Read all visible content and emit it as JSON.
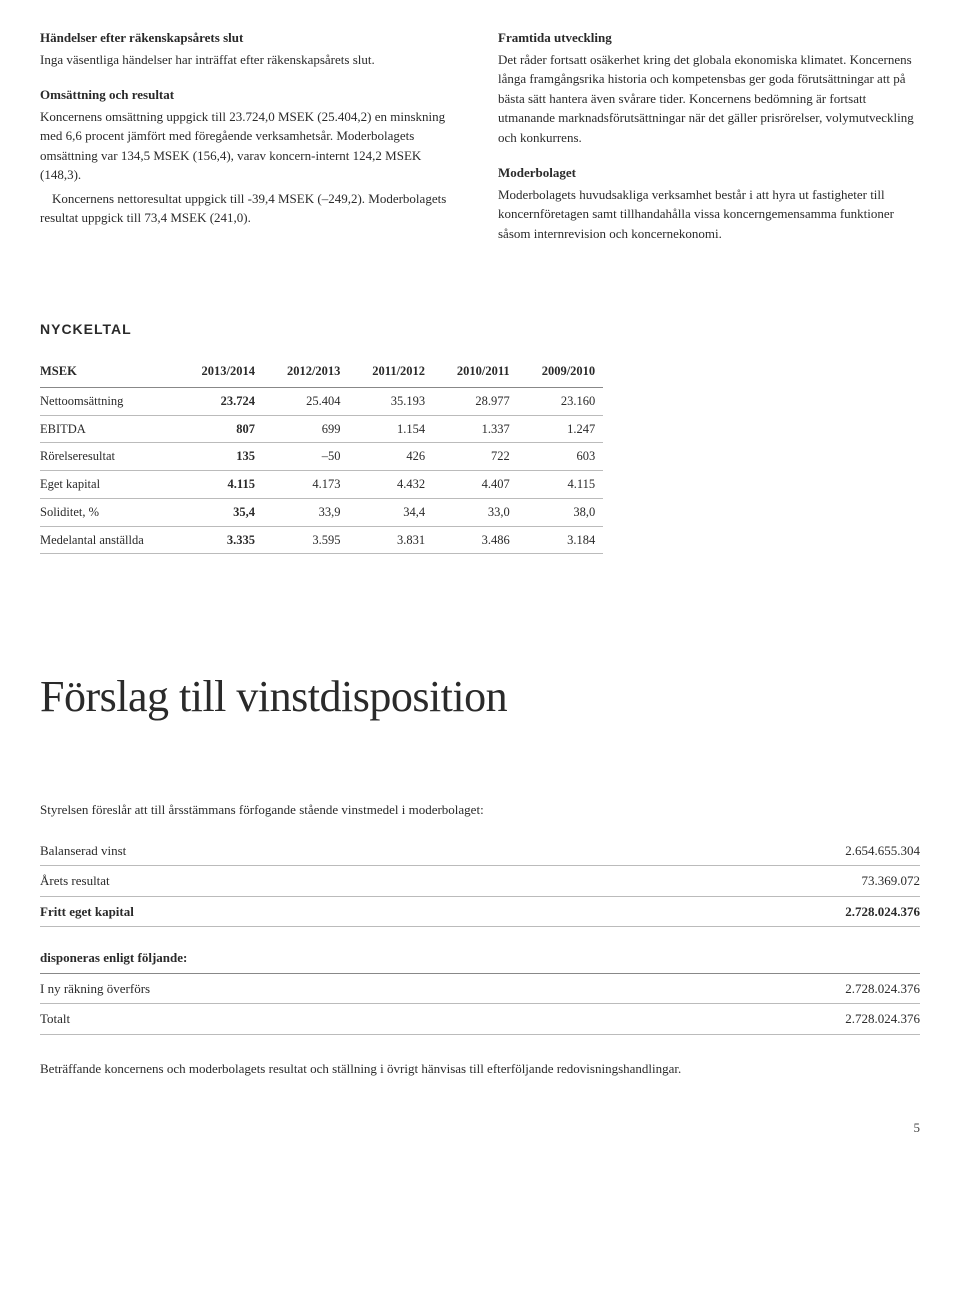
{
  "leftCol": {
    "sect1": {
      "heading": "Händelser efter räkenskapsårets slut",
      "body": "Inga väsentliga händelser har inträffat efter räkenskapsårets slut."
    },
    "sect2": {
      "heading": "Omsättning och resultat",
      "p1": "Koncernens omsättning uppgick till 23.724,0 MSEK (25.404,2) en minskning med 6,6 procent jämfört med föregående verksamhetsår. Moderbolagets omsättning var 134,5 MSEK (156,4), varav koncern-internt 124,2 MSEK (148,3).",
      "p2": "Koncernens nettoresultat uppgick till -39,4 MSEK (–249,2). Moderbolagets resultat uppgick till 73,4 MSEK (241,0)."
    }
  },
  "rightCol": {
    "sect1": {
      "heading": "Framtida utveckling",
      "body": "Det råder fortsatt osäkerhet kring det globala ekonomiska klimatet. Koncernens långa framgångsrika historia och kompetensbas ger goda förutsättningar att på bästa sätt hantera även svårare tider. Koncernens bedömning är fortsatt utmanande marknadsförutsättningar när det gäller prisrörelser, volymutveckling och konkurrens."
    },
    "sect2": {
      "heading": "Moderbolaget",
      "body": "Moderbolagets huvudsakliga verksamhet består i att hyra ut fastigheter till koncernföretagen samt tillhandahålla vissa koncerngemensamma funktioner såsom internrevision och koncernekonomi."
    }
  },
  "nyckeltal": {
    "title": "NYCKELTAL",
    "headerLabel": "MSEK",
    "years": [
      "2013/2014",
      "2012/2013",
      "2011/2012",
      "2010/2011",
      "2009/2010"
    ],
    "rows": [
      {
        "label": "Nettoomsättning",
        "vals": [
          "23.724",
          "25.404",
          "35.193",
          "28.977",
          "23.160"
        ]
      },
      {
        "label": "EBITDA",
        "vals": [
          "807",
          "699",
          "1.154",
          "1.337",
          "1.247"
        ]
      },
      {
        "label": "Rörelseresultat",
        "vals": [
          "135",
          "–50",
          "426",
          "722",
          "603"
        ]
      },
      {
        "label": "Eget kapital",
        "vals": [
          "4.115",
          "4.173",
          "4.432",
          "4.407",
          "4.115"
        ]
      },
      {
        "label": "Soliditet, %",
        "vals": [
          "35,4",
          "33,9",
          "34,4",
          "33,0",
          "38,0"
        ]
      },
      {
        "label": "Medelantal anställda",
        "vals": [
          "3.335",
          "3.595",
          "3.831",
          "3.486",
          "3.184"
        ]
      }
    ]
  },
  "forslag": {
    "title": "Förslag till vinstdisposition",
    "intro": "Styrelsen föreslår att till årsstämmans förfogande stående vinstmedel i moderbolaget:",
    "table1": [
      {
        "label": "Balanserad vinst",
        "value": "2.654.655.304",
        "bold": false
      },
      {
        "label": "Årets resultat",
        "value": "73.369.072",
        "bold": false
      },
      {
        "label": "Fritt eget kapital",
        "value": "2.728.024.376",
        "bold": true
      }
    ],
    "table2header": "disponeras enligt följande:",
    "table2": [
      {
        "label": "I ny räkning överförs",
        "value": "2.728.024.376",
        "bold": false
      },
      {
        "label": "Totalt",
        "value": "2.728.024.376",
        "bold": false
      }
    ],
    "finalNote": "Beträffande koncernens och moderbolagets resultat och ställning i övrigt hänvisas till efterföljande redovisningshandlingar."
  },
  "pageNumber": "5"
}
